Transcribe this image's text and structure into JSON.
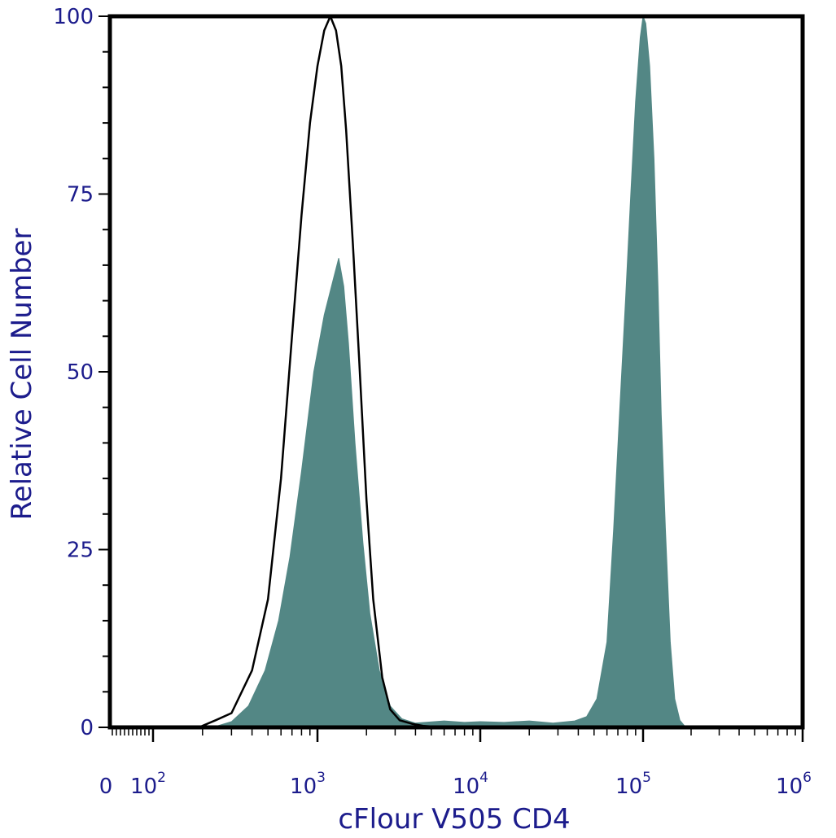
{
  "chart_data": {
    "type": "area",
    "xlabel": "cFlour V505 CD4",
    "ylabel": "Relative Cell Number",
    "xscale": "log",
    "ylim": [
      0,
      100
    ],
    "y_ticks": [
      0,
      25,
      50,
      75,
      100
    ],
    "x_ticks": [
      {
        "base": "0",
        "exp": ""
      },
      {
        "base": "10",
        "exp": "2"
      },
      {
        "base": "10",
        "exp": "3"
      },
      {
        "base": "10",
        "exp": "4"
      },
      {
        "base": "10",
        "exp": "5"
      },
      {
        "base": "10",
        "exp": "6"
      }
    ],
    "grid": false,
    "series": [
      {
        "style": "outline",
        "color": "#000000",
        "points": [
          [
            190,
            0
          ],
          [
            240,
            1
          ],
          [
            300,
            2
          ],
          [
            400,
            8
          ],
          [
            500,
            18
          ],
          [
            600,
            35
          ],
          [
            700,
            55
          ],
          [
            800,
            72
          ],
          [
            900,
            85
          ],
          [
            1000,
            93
          ],
          [
            1100,
            98
          ],
          [
            1200,
            100
          ],
          [
            1300,
            98
          ],
          [
            1400,
            93
          ],
          [
            1500,
            84
          ],
          [
            1650,
            68
          ],
          [
            1800,
            52
          ],
          [
            2000,
            32
          ],
          [
            2200,
            18
          ],
          [
            2500,
            7
          ],
          [
            2800,
            2.5
          ],
          [
            3200,
            1
          ],
          [
            3800,
            0.5
          ],
          [
            4500,
            0.2
          ],
          [
            6000,
            0
          ]
        ]
      },
      {
        "style": "filled",
        "color": "#538785",
        "points": [
          [
            230,
            0
          ],
          [
            300,
            0.8
          ],
          [
            380,
            3
          ],
          [
            480,
            8
          ],
          [
            580,
            15
          ],
          [
            680,
            24
          ],
          [
            800,
            36
          ],
          [
            950,
            50
          ],
          [
            1100,
            58
          ],
          [
            1250,
            63
          ],
          [
            1350,
            66
          ],
          [
            1450,
            62
          ],
          [
            1550,
            54
          ],
          [
            1700,
            40
          ],
          [
            1900,
            26
          ],
          [
            2100,
            16
          ],
          [
            2400,
            8
          ],
          [
            2800,
            3
          ],
          [
            3300,
            1.2
          ],
          [
            4000,
            0.6
          ],
          [
            6000,
            0.9
          ],
          [
            8000,
            0.7
          ],
          [
            10000,
            0.8
          ],
          [
            14000,
            0.7
          ],
          [
            20000,
            0.9
          ],
          [
            28000,
            0.6
          ],
          [
            38000,
            0.9
          ],
          [
            45000,
            1.5
          ],
          [
            52000,
            4
          ],
          [
            60000,
            12
          ],
          [
            66000,
            28
          ],
          [
            72000,
            45
          ],
          [
            78000,
            60
          ],
          [
            84000,
            75
          ],
          [
            90000,
            88
          ],
          [
            96000,
            97
          ],
          [
            100000,
            100
          ],
          [
            104000,
            99
          ],
          [
            110000,
            93
          ],
          [
            117000,
            80
          ],
          [
            124000,
            62
          ],
          [
            130000,
            44
          ],
          [
            138000,
            28
          ],
          [
            148000,
            12
          ],
          [
            158000,
            4
          ],
          [
            170000,
            1
          ],
          [
            185000,
            0
          ]
        ]
      }
    ]
  }
}
